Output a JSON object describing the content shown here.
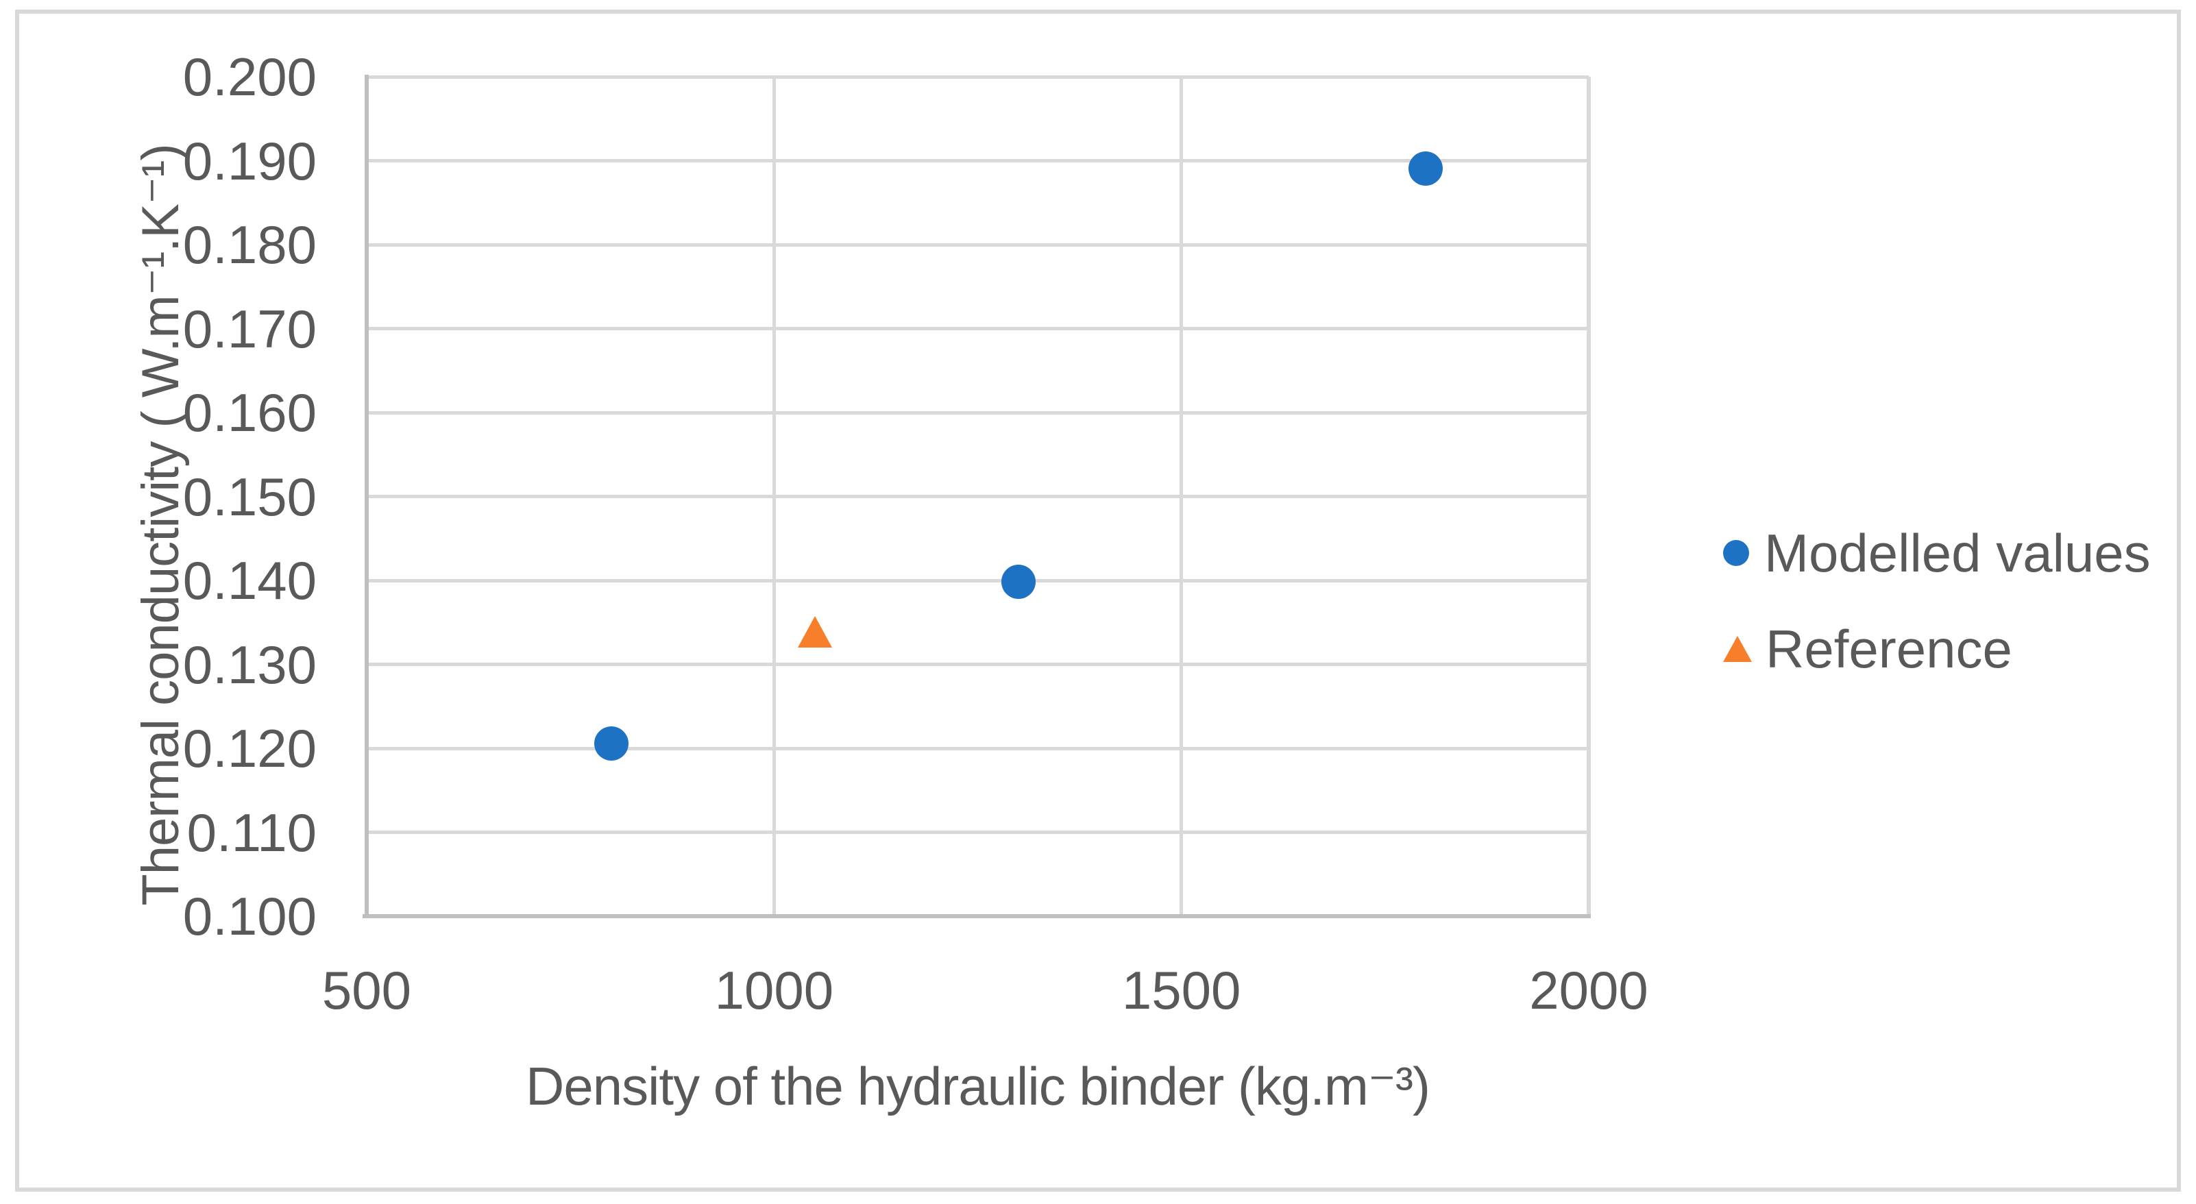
{
  "figure": {
    "background": "#ffffff",
    "frame_border_color": "#d9d9d9"
  },
  "chart_data": {
    "type": "scatter",
    "title": "",
    "xlabel": "Density of the hydraulic binder (kg.m⁻³)",
    "ylabel": "Thermal conductivity ( W.m⁻¹.K⁻¹)",
    "xlim": [
      500,
      2000
    ],
    "ylim": [
      0.1,
      0.2
    ],
    "x_ticks": [
      "500",
      "1000",
      "1500",
      "2000"
    ],
    "y_ticks": [
      "0.200",
      "0.190",
      "0.180",
      "0.170",
      "0.160",
      "0.150",
      "0.140",
      "0.130",
      "0.120",
      "0.110",
      "0.100"
    ],
    "grid": true,
    "legend_position": "right",
    "series": [
      {
        "name": "Modelled values",
        "marker": "circle",
        "color": "#1e72c4",
        "points": [
          [
            800,
            0.1206
          ],
          [
            1300,
            0.1398
          ],
          [
            1800,
            0.1891
          ]
        ]
      },
      {
        "name": "Reference",
        "marker": "triangle",
        "color": "#f77e2a",
        "points": [
          [
            1050,
            0.1338
          ]
        ]
      }
    ],
    "text_color": "#595959",
    "gridline_color": "#d9d9d9",
    "axis_line_color": "#bfbfbf"
  }
}
